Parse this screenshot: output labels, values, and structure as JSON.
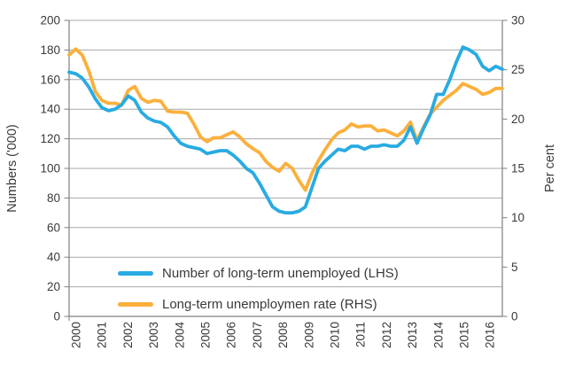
{
  "chart_data": {
    "type": "line",
    "title": "",
    "x": [
      2000.0,
      2000.25,
      2000.5,
      2000.75,
      2001.0,
      2001.25,
      2001.5,
      2001.75,
      2002.0,
      2002.25,
      2002.5,
      2002.75,
      2003.0,
      2003.25,
      2003.5,
      2003.75,
      2004.0,
      2004.25,
      2004.5,
      2004.75,
      2005.0,
      2005.25,
      2005.5,
      2005.75,
      2006.0,
      2006.25,
      2006.5,
      2006.75,
      2007.0,
      2007.25,
      2007.5,
      2007.75,
      2008.0,
      2008.25,
      2008.5,
      2008.75,
      2009.0,
      2009.25,
      2009.5,
      2009.75,
      2010.0,
      2010.25,
      2010.5,
      2010.75,
      2011.0,
      2011.25,
      2011.5,
      2011.75,
      2012.0,
      2012.25,
      2012.5,
      2012.75,
      2013.0,
      2013.25,
      2013.5,
      2013.75,
      2014.0,
      2014.25,
      2014.5,
      2014.75,
      2015.0,
      2015.25,
      2015.5,
      2015.75,
      2016.0,
      2016.25,
      2016.5
    ],
    "x_ticks": [
      "2000",
      "2001",
      "2002",
      "2003",
      "2004",
      "2005",
      "2006",
      "2007",
      "2008",
      "2009",
      "2010",
      "2011",
      "2012",
      "2013",
      "2014",
      "2015",
      "2016"
    ],
    "x_range": [
      2000,
      2016.5
    ],
    "left_axis": {
      "title": "Numbers ('000)",
      "min": 0,
      "max": 200,
      "ticks": [
        0,
        20,
        40,
        60,
        80,
        100,
        120,
        140,
        160,
        180,
        200
      ]
    },
    "right_axis": {
      "title": "Per cent",
      "min": 0,
      "max": 30,
      "ticks": [
        0,
        5,
        10,
        15,
        20,
        25,
        30
      ]
    },
    "series": [
      {
        "name": "Number of long-term unemployed (LHS)",
        "axis": "left",
        "color": "#29ABE2",
        "values": [
          165,
          164,
          161,
          155,
          147,
          141,
          139,
          140,
          143,
          149,
          146,
          138,
          134,
          132,
          131,
          128,
          122,
          117,
          115,
          114,
          113,
          110,
          111,
          112,
          112,
          109,
          105,
          100,
          97,
          90,
          82,
          74,
          71,
          70,
          70,
          71,
          74,
          87,
          100,
          105,
          109,
          113,
          112,
          115,
          115,
          113,
          115,
          115,
          116,
          115,
          115,
          119,
          128,
          117,
          127,
          136,
          150,
          150,
          160,
          172,
          182,
          180,
          177,
          169,
          166,
          169,
          167
        ]
      },
      {
        "name": "Long-term unemploymen rate (RHS)",
        "axis": "right",
        "color": "#FBB03C",
        "values": [
          26.5,
          27.1,
          26.5,
          24.9,
          22.8,
          21.9,
          21.6,
          21.6,
          21.4,
          22.9,
          23.3,
          22.1,
          21.7,
          21.9,
          21.8,
          20.8,
          20.7,
          20.7,
          20.6,
          19.5,
          18.2,
          17.7,
          18.1,
          18.1,
          18.4,
          18.7,
          18.2,
          17.5,
          17.0,
          16.6,
          15.7,
          15.1,
          14.7,
          15.5,
          15.0,
          13.8,
          12.8,
          14.5,
          15.8,
          16.9,
          17.9,
          18.6,
          18.9,
          19.5,
          19.2,
          19.3,
          19.3,
          18.8,
          18.9,
          18.6,
          18.3,
          18.8,
          19.7,
          17.8,
          19.2,
          20.5,
          21.2,
          21.9,
          22.4,
          22.9,
          23.6,
          23.3,
          23.0,
          22.5,
          22.7,
          23.1,
          23.1
        ]
      }
    ],
    "grid": "horizontal-only",
    "grid_color": "#A8A8A8",
    "axis_color": "#7F7F7F",
    "text_color": "#3A3A3A",
    "legend_position": "inside-bottom-left"
  }
}
